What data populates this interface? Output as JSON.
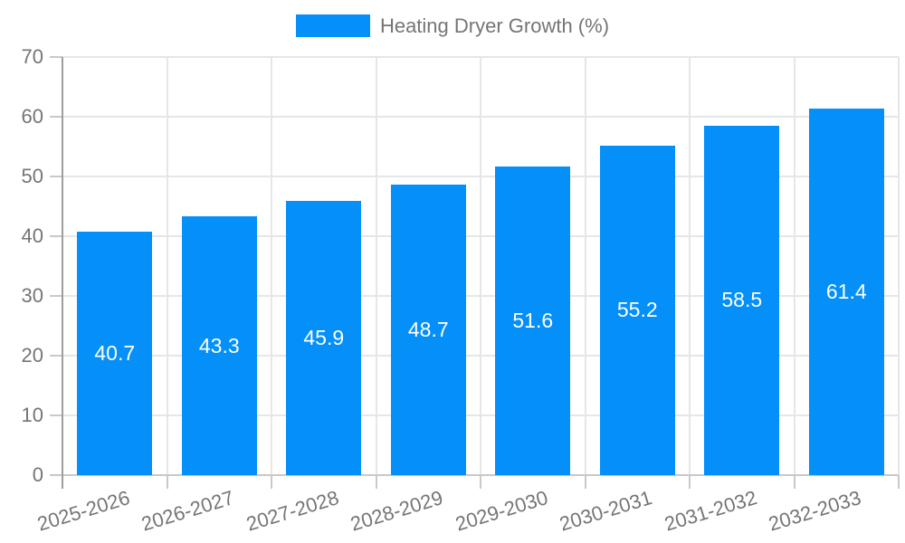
{
  "legend": {
    "label": "Heating Dryer Growth (%)"
  },
  "colors": {
    "bar": "#0590f9",
    "axis_text": "#757575",
    "gridline": "#e6e6e6",
    "baseline": "#c9c9c9",
    "axis_line": "#9e9e9e",
    "annotation_text": "#ffffff"
  },
  "chart_data": {
    "type": "bar",
    "title": "Heating Dryer Growth (%)",
    "categories": [
      "2025-2026",
      "2026-2027",
      "2027-2028",
      "2028-2029",
      "2029-2030",
      "2030-2031",
      "2031-2032",
      "2032-2033"
    ],
    "series": [
      {
        "name": "Heating Dryer Growth (%)",
        "values": [
          40.7,
          43.3,
          45.9,
          48.7,
          51.6,
          55.2,
          58.5,
          61.4
        ]
      }
    ],
    "value_labels": [
      "40.7",
      "43.3",
      "45.9",
      "48.7",
      "51.6",
      "55.2",
      "58.5",
      "61.4"
    ],
    "xlabel": "",
    "ylabel": "",
    "ylim": [
      0,
      70
    ],
    "yticks": [
      0,
      10,
      20,
      30,
      40,
      50,
      60,
      70
    ],
    "grid": true,
    "legend_position": "top",
    "x_label_rotation_deg": -17
  }
}
